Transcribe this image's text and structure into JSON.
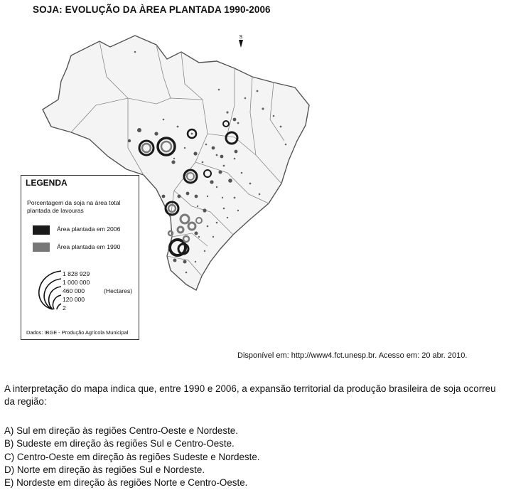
{
  "map": {
    "title": "SOJA: EVOLUÇÃO DA ÀREA PLANTADA 1990-2006",
    "compass_label": "S",
    "legend": {
      "title": "LEGENDA",
      "description": "Porcentagem da soja na área total plantada de lavouras",
      "item_2006": "Área plantada em 2006",
      "item_1990": "Área plantada em 1990",
      "color_2006": "#1a1a1a",
      "color_1990": "#777777",
      "sizes": [
        "1 828 929",
        "1 000 000",
        "460 000",
        "120 000",
        "2"
      ],
      "units": "(Hectares)",
      "source": "Dados: IBGE - Produção Agrícola Municipal"
    }
  },
  "source_text": "Disponível em: http://www4.fct.unesp.br. Acesso em: 20 abr. 2010.",
  "question": {
    "stem": "A interpretação do mapa indica que, entre 1990 e 2006, a expansão territorial da produção brasileira de soja ocorreu da região:",
    "options": [
      "A) Sul em direção às regiões Centro-Oeste e Nordeste.",
      "B) Sudeste em direção às regiões Sul e Centro-Oeste.",
      "C) Centro-Oeste em direção às regiões Sudeste e Nordeste.",
      "D) Norte em direção às regiões Sul e Nordeste.",
      "E) Nordeste em direção às regiões Norte e Centro-Oeste."
    ]
  }
}
